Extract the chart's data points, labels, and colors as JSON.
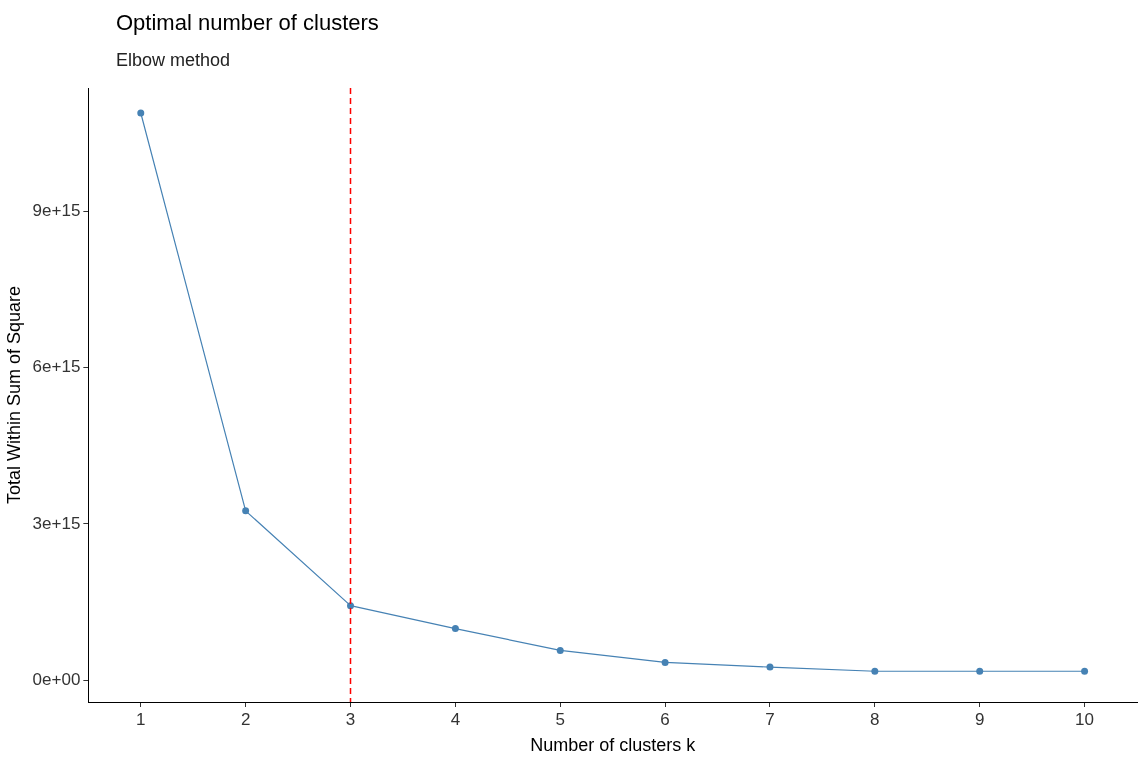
{
  "chart_data": {
    "type": "line",
    "title": "Optimal number of clusters",
    "subtitle": "Elbow method",
    "xlabel": "Number of clusters k",
    "ylabel": "Total Within Sum of Square",
    "categories": [
      "1",
      "2",
      "3",
      "4",
      "5",
      "6",
      "7",
      "8",
      "9",
      "10"
    ],
    "series": [
      {
        "color": "#4682b4",
        "values": [
          1.089e+16,
          3250000000000000.0,
          1430000000000000.0,
          990000000000000.0,
          570000000000000.0,
          340000000000000.0,
          250000000000000.0,
          170000000000000.0,
          170000000000000.0,
          170000000000000.0
        ]
      }
    ],
    "ylim": [
      -420000000000000.0,
      1.137e+16
    ],
    "yticks": [
      {
        "value": 0,
        "label": "0e+00"
      },
      {
        "value": 3000000000000000.0,
        "label": "3e+15"
      },
      {
        "value": 6000000000000000.0,
        "label": "6e+15"
      },
      {
        "value": 9000000000000000.0,
        "label": "9e+15"
      }
    ],
    "ref_lines": [
      {
        "axis": "x",
        "value": "3",
        "color": "#ff0000",
        "line_style": "dashed"
      }
    ],
    "grid": false,
    "legend": false,
    "marker": "circle",
    "line_style": "solid"
  }
}
